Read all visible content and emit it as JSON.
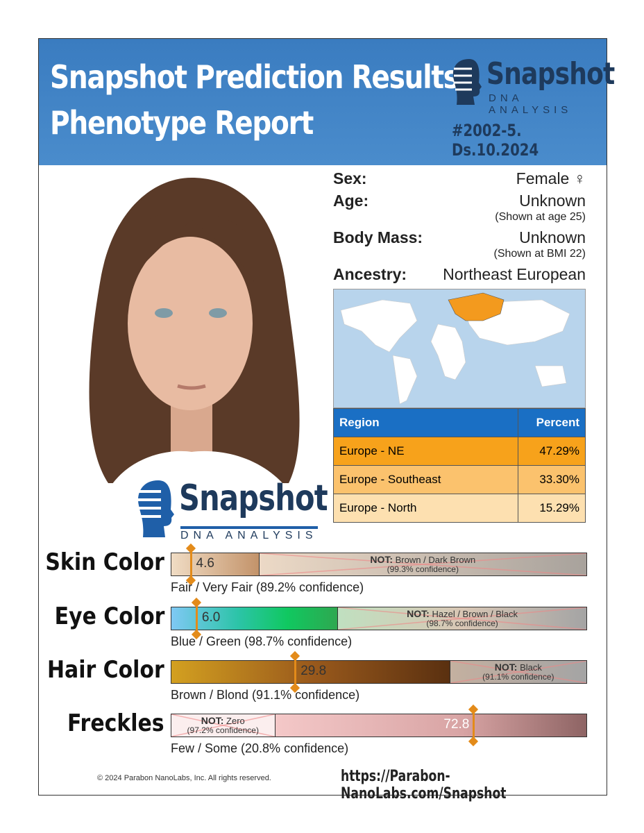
{
  "header": {
    "title_line1": "Snapshot Prediction Results",
    "title_line2": "Phenotype Report",
    "logo_word": "Snapshot",
    "logo_sub": "DNA ANALYSIS",
    "case_id": "#2002-5. Ds.10.2024",
    "bg_color": "#3f82c4"
  },
  "profile": {
    "sex_label": "Sex:",
    "sex_value": "Female ♀",
    "age_label": "Age:",
    "age_value": "Unknown",
    "age_note": "(Shown at age 25)",
    "mass_label": "Body Mass:",
    "mass_value": "Unknown",
    "mass_note": "(Shown at BMI 22)",
    "ancestry_label": "Ancestry:",
    "ancestry_value": "Northeast European"
  },
  "ancestry_table": {
    "headers": [
      "Region",
      "Percent"
    ],
    "rows": [
      {
        "region": "Europe - NE",
        "percent": "47.29%",
        "color": "#f7a21b"
      },
      {
        "region": "Europe - Southeast",
        "percent": "33.30%",
        "color": "#fbc26d"
      },
      {
        "region": "Europe - North",
        "percent": "15.29%",
        "color": "#fde0b0"
      }
    ]
  },
  "portrait_logo": {
    "word": "Snapshot",
    "sub": "DNA ANALYSIS"
  },
  "traits": [
    {
      "label": "Skin Color",
      "value": "4.6",
      "marker": 4.6,
      "summary": "Fair / Very Fair (89.2% confidence)",
      "not_label": "NOT:",
      "not_text": "Brown / Dark Brown",
      "not_conf": "(99.3% confidence)"
    },
    {
      "label": "Eye Color",
      "value": "6.0",
      "marker": 6.0,
      "summary": "Blue / Green (98.7% confidence)",
      "not_label": "NOT:",
      "not_text": "Hazel / Brown / Black",
      "not_conf": "(98.7% confidence)"
    },
    {
      "label": "Hair Color",
      "value": "29.8",
      "marker": 29.8,
      "summary": "Brown / Blond (91.1% confidence)",
      "not_label": "NOT:",
      "not_text": "Black",
      "not_conf": "(91.1% confidence)"
    },
    {
      "label": "Freckles",
      "value": "72.8",
      "marker": 72.8,
      "summary": "Few / Some (20.8% confidence)",
      "not_label": "NOT:",
      "not_text": "Zero",
      "not_conf": "(97.2% confidence)"
    }
  ],
  "marker_color": "#e38b1a",
  "footer": {
    "copyright": "© 2024 Parabon NanoLabs, Inc. All rights reserved.",
    "url": "https://Parabon-NanoLabs.com/Snapshot"
  }
}
